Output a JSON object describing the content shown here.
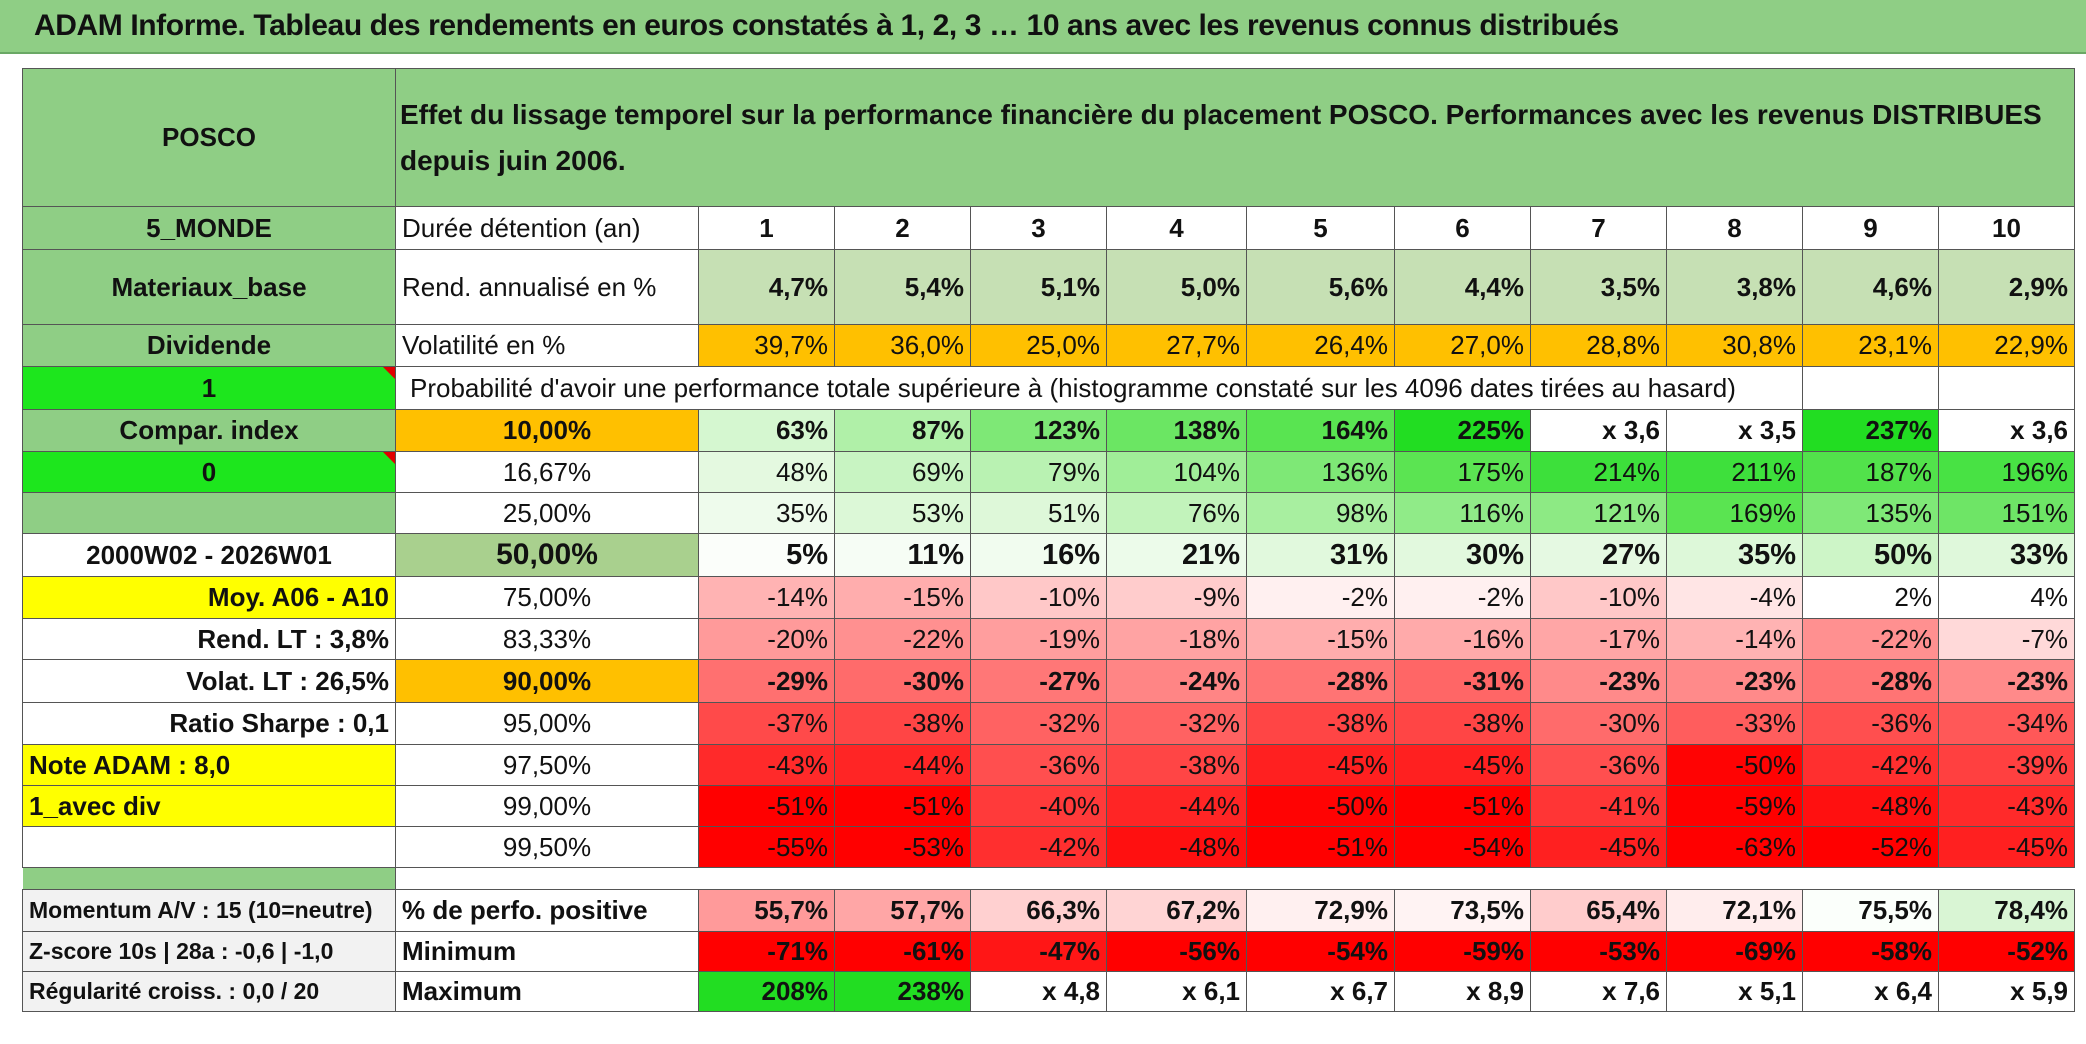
{
  "title": "ADAM Informe. Tableau des rendements en euros constatés à 1, 2, 3 … 10 ans avec les revenus connus distribués",
  "header": {
    "name": "POSCO",
    "description": "Effet du lissage temporel sur la performance financière du placement POSCO. Performances avec les revenus DISTRIBUES depuis juin 2006."
  },
  "left_labels": {
    "region": "5_MONDE",
    "sector": "Materiaux_base",
    "type": "Dividende",
    "param1": "1",
    "compar": "Compar. index",
    "param0": "0",
    "blank": "",
    "period": "2000W02 - 2026W01",
    "moy": "Moy. A06 - A10",
    "rend_lt": "Rend. LT :   3,8%",
    "volat_lt": "Volat. LT :   26,5%",
    "sharpe": "Ratio Sharpe :   0,1",
    "note": "Note ADAM : 8,0",
    "avec_div": "1_avec div",
    "momentum": "Momentum A/V : 15 (10=neutre)",
    "zscore": "Z-score 10s | 28a : -0,6 | -1,0",
    "regularite": "Régularité croiss. : 0,0 / 20"
  },
  "durations": {
    "label": "Durée détention (an)",
    "values": [
      "1",
      "2",
      "3",
      "4",
      "5",
      "6",
      "7",
      "8",
      "9",
      "10"
    ]
  },
  "rend": {
    "label": "Rend. annualisé en %",
    "values": [
      "4,7%",
      "5,4%",
      "5,1%",
      "5,0%",
      "5,6%",
      "4,4%",
      "3,5%",
      "3,8%",
      "4,6%",
      "2,9%"
    ]
  },
  "volat": {
    "label": "Volatilité en %",
    "values": [
      "39,7%",
      "36,0%",
      "25,0%",
      "27,7%",
      "26,4%",
      "27,0%",
      "28,8%",
      "30,8%",
      "23,1%",
      "22,9%"
    ]
  },
  "prob_header": "Probabilité d'avoir une performance totale supérieure à (histogramme constaté sur les 4096 dates tirées au hasard)",
  "quantiles": [
    {
      "label": "10,00%",
      "values": [
        "63%",
        "87%",
        "123%",
        "138%",
        "164%",
        "225%",
        "x 3,6",
        "x 3,5",
        "237%",
        "x 3,6"
      ],
      "colors": [
        "#d5f7d0",
        "#b0f0a8",
        "#7ee876",
        "#6be663",
        "#59e451",
        "#22dd22",
        "#ffffff",
        "#ffffff",
        "#22dd22",
        "#ffffff"
      ]
    },
    {
      "label": "16,67%",
      "values": [
        "48%",
        "69%",
        "79%",
        "104%",
        "136%",
        "175%",
        "214%",
        "211%",
        "187%",
        "196%"
      ],
      "colors": [
        "#e4f9e0",
        "#c8f4c2",
        "#b9f2b2",
        "#a0ee98",
        "#7ee876",
        "#5be452",
        "#3de03b",
        "#3ee03c",
        "#52e24b",
        "#48e244"
      ]
    },
    {
      "label": "25,00%",
      "values": [
        "35%",
        "53%",
        "51%",
        "76%",
        "98%",
        "116%",
        "121%",
        "169%",
        "135%",
        "151%"
      ],
      "colors": [
        "#eefbec",
        "#dcf8d7",
        "#def8d9",
        "#c2f3bb",
        "#a8efa0",
        "#90eb88",
        "#8dea84",
        "#5ae451",
        "#7fe877",
        "#6ee566"
      ]
    },
    {
      "label": "50,00%",
      "values": [
        "5%",
        "11%",
        "16%",
        "21%",
        "31%",
        "30%",
        "27%",
        "35%",
        "50%",
        "33%"
      ],
      "colors": [
        "#fbfefa",
        "#f6fdf5",
        "#f1fcef",
        "#ecfbea",
        "#e1f9dd",
        "#e2f9de",
        "#e5f9e2",
        "#ddf8d9",
        "#cdf5c7",
        "#dff8db"
      ]
    },
    {
      "label": "75,00%",
      "values": [
        "-14%",
        "-15%",
        "-10%",
        "-9%",
        "-2%",
        "-2%",
        "-10%",
        "-4%",
        "2%",
        "4%"
      ],
      "colors": [
        "#ffb3b3",
        "#ffadad",
        "#ffc8c8",
        "#ffcccc",
        "#fff0f0",
        "#fff0f0",
        "#ffc8c8",
        "#ffe5e5",
        "#ffffff",
        "#ffffff"
      ]
    },
    {
      "label": "83,33%",
      "values": [
        "-20%",
        "-22%",
        "-19%",
        "-18%",
        "-15%",
        "-16%",
        "-17%",
        "-14%",
        "-22%",
        "-7%"
      ],
      "colors": [
        "#ff9a9a",
        "#ff9090",
        "#ff9e9e",
        "#ffa3a3",
        "#ffadad",
        "#ffaaaa",
        "#ffa6a6",
        "#ffb3b3",
        "#ff9090",
        "#ffd9d9"
      ]
    },
    {
      "label": "90,00%",
      "values": [
        "-29%",
        "-30%",
        "-27%",
        "-24%",
        "-28%",
        "-31%",
        "-23%",
        "-23%",
        "-28%",
        "-23%"
      ],
      "colors": [
        "#ff7070",
        "#ff6b6b",
        "#ff7777",
        "#ff8585",
        "#ff7474",
        "#ff6666",
        "#ff8a8a",
        "#ff8a8a",
        "#ff7474",
        "#ff8a8a"
      ]
    },
    {
      "label": "95,00%",
      "values": [
        "-37%",
        "-38%",
        "-32%",
        "-32%",
        "-38%",
        "-38%",
        "-30%",
        "-33%",
        "-36%",
        "-34%"
      ],
      "colors": [
        "#ff4a4a",
        "#ff4545",
        "#ff6262",
        "#ff6262",
        "#ff4545",
        "#ff4545",
        "#ff6b6b",
        "#ff5d5d",
        "#ff4f4f",
        "#ff5858"
      ]
    },
    {
      "label": "97,50%",
      "values": [
        "-43%",
        "-44%",
        "-36%",
        "-38%",
        "-45%",
        "-45%",
        "-36%",
        "-50%",
        "-42%",
        "-39%"
      ],
      "colors": [
        "#ff2a2a",
        "#ff2525",
        "#ff4f4f",
        "#ff4545",
        "#ff2020",
        "#ff2020",
        "#ff4f4f",
        "#ff0303",
        "#ff2f2f",
        "#ff4040"
      ]
    },
    {
      "label": "99,00%",
      "values": [
        "-51%",
        "-51%",
        "-40%",
        "-44%",
        "-50%",
        "-51%",
        "-41%",
        "-59%",
        "-48%",
        "-43%"
      ],
      "colors": [
        "#ff0000",
        "#ff0000",
        "#ff3a3a",
        "#ff2525",
        "#ff0303",
        "#ff0000",
        "#ff3535",
        "#ff0000",
        "#ff1010",
        "#ff2a2a"
      ]
    },
    {
      "label": "99,50%",
      "values": [
        "-55%",
        "-53%",
        "-42%",
        "-48%",
        "-51%",
        "-54%",
        "-45%",
        "-63%",
        "-52%",
        "-45%"
      ],
      "colors": [
        "#ff0000",
        "#ff0000",
        "#ff2f2f",
        "#ff1010",
        "#ff0000",
        "#ff0000",
        "#ff2020",
        "#ff0000",
        "#ff0000",
        "#ff2020"
      ]
    }
  ],
  "perfo_pos": {
    "label": "% de perfo. positive",
    "values": [
      "55,7%",
      "57,7%",
      "66,3%",
      "67,2%",
      "72,9%",
      "73,5%",
      "65,4%",
      "72,1%",
      "75,5%",
      "78,4%"
    ],
    "colors": [
      "#ff9a9a",
      "#ffa6a6",
      "#ffd0d0",
      "#ffd4d4",
      "#fff0f0",
      "#fff3f3",
      "#ffcccc",
      "#ffeded",
      "#fbfffb",
      "#d9f5d4"
    ]
  },
  "minimum": {
    "label": "Minimum",
    "values": [
      "-71%",
      "-61%",
      "-47%",
      "-56%",
      "-54%",
      "-59%",
      "-53%",
      "-69%",
      "-58%",
      "-52%"
    ],
    "colors": [
      "#ff0000",
      "#ff0000",
      "#ff1616",
      "#ff0000",
      "#ff0000",
      "#ff0000",
      "#ff0000",
      "#ff0000",
      "#ff0000",
      "#ff0000"
    ]
  },
  "maximum": {
    "label": "Maximum",
    "values": [
      "208%",
      "238%",
      "x 4,8",
      "x 6,1",
      "x 6,7",
      "x 8,9",
      "x 7,6",
      "x 5,1",
      "x 6,4",
      "x 5,9"
    ],
    "colors": [
      "#22dd22",
      "#22dd22",
      "#ffffff",
      "#ffffff",
      "#ffffff",
      "#ffffff",
      "#ffffff",
      "#ffffff",
      "#ffffff",
      "#ffffff"
    ]
  },
  "colors": {
    "title_bg": "#8fce85",
    "label_bg": "#8fce85",
    "bright_green": "#1de61d",
    "orange": "#ffc000",
    "yellow": "#ffff00",
    "red_text": "#d0101a"
  }
}
